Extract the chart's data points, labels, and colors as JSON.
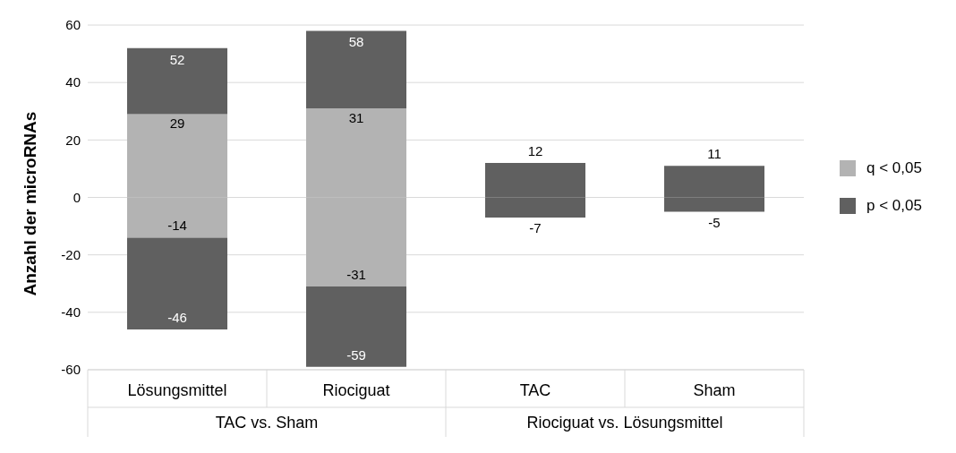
{
  "chart_data": {
    "type": "bar",
    "stacked": true,
    "ylabel": "Anzahl der microRNAs",
    "categories": [
      "Lösungsmittel",
      "Riociguat",
      "TAC",
      "Sham"
    ],
    "annotations": [
      "TAC vs. Sham",
      "Riociguat vs. Lösungsmittel",
      {
        "text": "52",
        "x": "Lösungsmittel",
        "y": 52
      },
      {
        "text": "58",
        "x": "Riociguat",
        "y": 58
      },
      {
        "text": "-46",
        "x": "Lösungsmittel",
        "y": -46
      },
      {
        "text": "-59",
        "x": "Riociguat",
        "y": -59
      }
    ],
    "series": [
      {
        "name": "q < 0,05",
        "color": "#b3b3b3",
        "values": [
          29,
          31,
          null,
          null
        ],
        "value_labels": [
          "29",
          "31",
          null,
          null
        ]
      },
      {
        "color": "#b3b3b3",
        "values": [
          -14,
          -31,
          null,
          null
        ],
        "value_labels": [
          "-14",
          "-31",
          null,
          null
        ]
      },
      {
        "name": "p < 0,05",
        "color": "#606060",
        "values": [
          23,
          27,
          12,
          11
        ],
        "value_labels": [
          null,
          null,
          "12",
          "11"
        ]
      },
      {
        "color": "#606060",
        "values": [
          -32,
          -28,
          -7,
          -5
        ],
        "value_labels": [
          null,
          null,
          "-7",
          "-5"
        ]
      }
    ],
    "ylim": [
      -60,
      60
    ],
    "yticks": [
      -60,
      -40,
      -20,
      0,
      20,
      40,
      60
    ],
    "grid": "y",
    "legend": "right"
  }
}
